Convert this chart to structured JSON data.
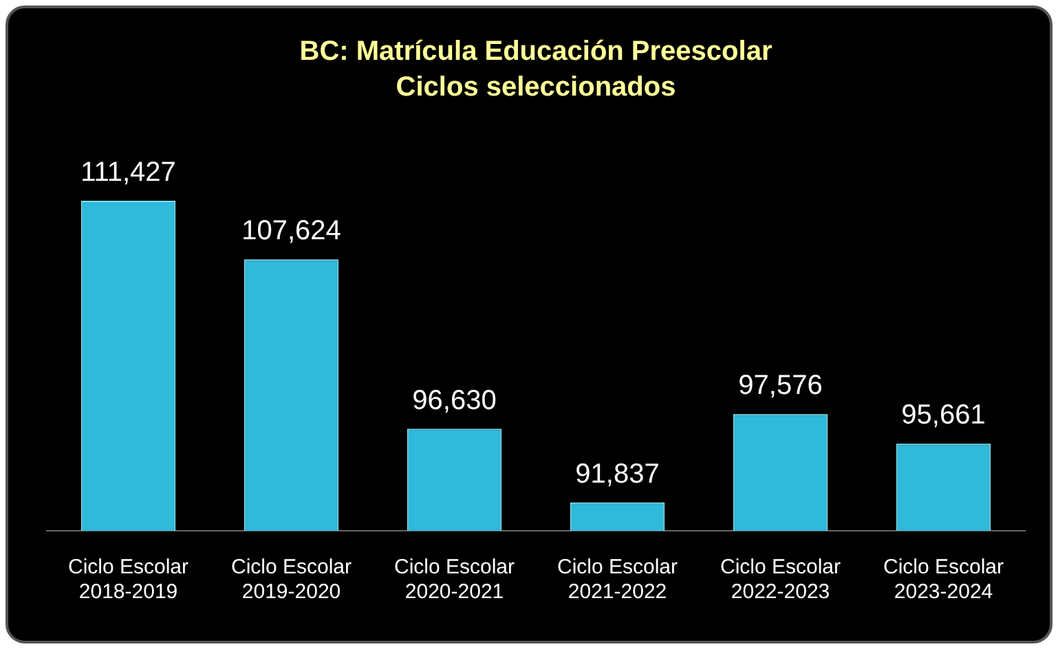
{
  "chart_data": {
    "type": "bar",
    "title": "BC: Matrícula Educación Preescolar",
    "subtitle": "Ciclos seleccionados",
    "categories": [
      "Ciclo Escolar 2018-2019",
      "Ciclo Escolar 2019-2020",
      "Ciclo Escolar 2020-2021",
      "Ciclo Escolar 2021-2022",
      "Ciclo Escolar 2022-2023",
      "Ciclo Escolar 2023-2024"
    ],
    "values": [
      111427,
      107624,
      96630,
      91837,
      97576,
      95661
    ],
    "color": "#2fb9db",
    "value_labels": [
      "111,427",
      "107,624",
      "96,630",
      "91,837",
      "97,576",
      "95,661"
    ],
    "tick_labels": "x",
    "grid": false,
    "legend": false
  }
}
